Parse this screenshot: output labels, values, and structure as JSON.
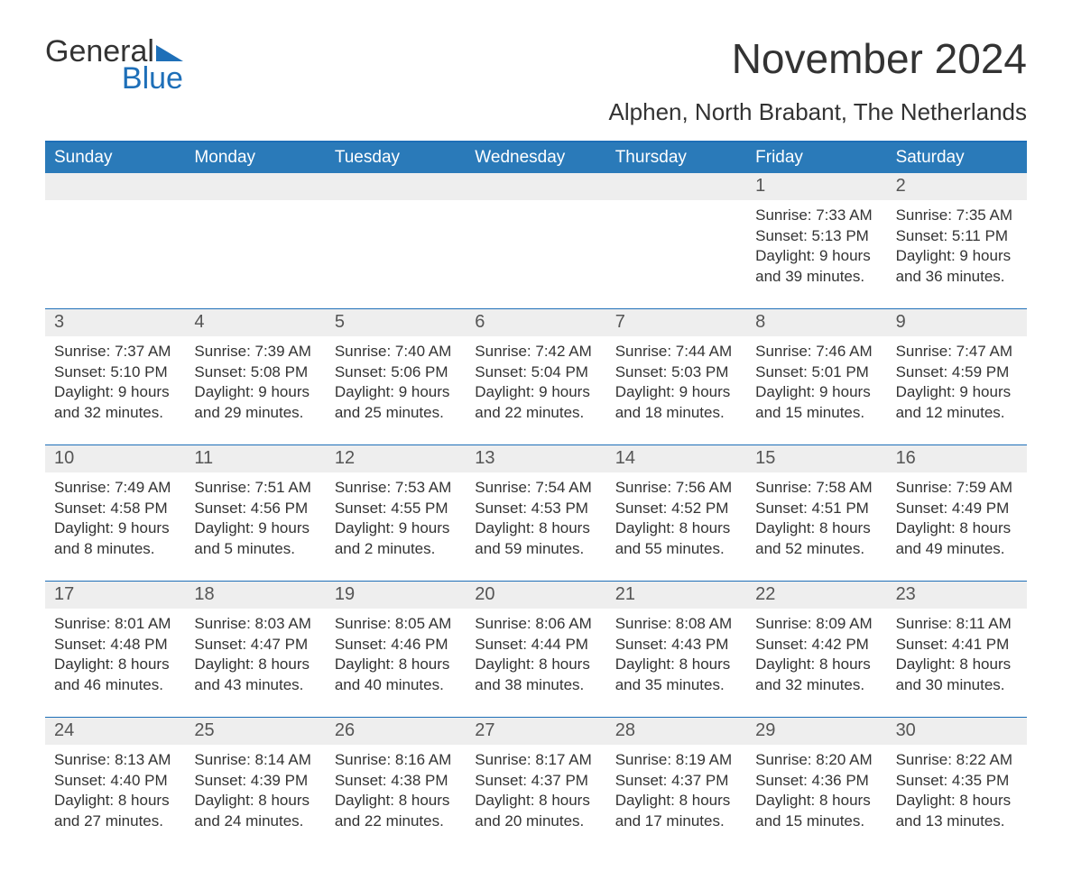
{
  "logo": {
    "text1": "General",
    "text2": "Blue"
  },
  "title": "November 2024",
  "subtitle": "Alphen, North Brabant, The Netherlands",
  "colors": {
    "header_bg": "#2a7ab9",
    "header_text": "#ffffff",
    "accent_border": "#1e6fb8",
    "daynum_bg": "#eeeeee",
    "text": "#333333",
    "blue": "#1e6fb8",
    "background": "#ffffff"
  },
  "typography": {
    "title_fontsize": 46,
    "subtitle_fontsize": 26,
    "weekday_fontsize": 19,
    "daynum_fontsize": 20,
    "body_fontsize": 17
  },
  "weekdays": [
    "Sunday",
    "Monday",
    "Tuesday",
    "Wednesday",
    "Thursday",
    "Friday",
    "Saturday"
  ],
  "weeks": [
    [
      {
        "day": "",
        "sunrise": "",
        "sunset": "",
        "daylight1": "",
        "daylight2": ""
      },
      {
        "day": "",
        "sunrise": "",
        "sunset": "",
        "daylight1": "",
        "daylight2": ""
      },
      {
        "day": "",
        "sunrise": "",
        "sunset": "",
        "daylight1": "",
        "daylight2": ""
      },
      {
        "day": "",
        "sunrise": "",
        "sunset": "",
        "daylight1": "",
        "daylight2": ""
      },
      {
        "day": "",
        "sunrise": "",
        "sunset": "",
        "daylight1": "",
        "daylight2": ""
      },
      {
        "day": "1",
        "sunrise": "Sunrise: 7:33 AM",
        "sunset": "Sunset: 5:13 PM",
        "daylight1": "Daylight: 9 hours",
        "daylight2": "and 39 minutes."
      },
      {
        "day": "2",
        "sunrise": "Sunrise: 7:35 AM",
        "sunset": "Sunset: 5:11 PM",
        "daylight1": "Daylight: 9 hours",
        "daylight2": "and 36 minutes."
      }
    ],
    [
      {
        "day": "3",
        "sunrise": "Sunrise: 7:37 AM",
        "sunset": "Sunset: 5:10 PM",
        "daylight1": "Daylight: 9 hours",
        "daylight2": "and 32 minutes."
      },
      {
        "day": "4",
        "sunrise": "Sunrise: 7:39 AM",
        "sunset": "Sunset: 5:08 PM",
        "daylight1": "Daylight: 9 hours",
        "daylight2": "and 29 minutes."
      },
      {
        "day": "5",
        "sunrise": "Sunrise: 7:40 AM",
        "sunset": "Sunset: 5:06 PM",
        "daylight1": "Daylight: 9 hours",
        "daylight2": "and 25 minutes."
      },
      {
        "day": "6",
        "sunrise": "Sunrise: 7:42 AM",
        "sunset": "Sunset: 5:04 PM",
        "daylight1": "Daylight: 9 hours",
        "daylight2": "and 22 minutes."
      },
      {
        "day": "7",
        "sunrise": "Sunrise: 7:44 AM",
        "sunset": "Sunset: 5:03 PM",
        "daylight1": "Daylight: 9 hours",
        "daylight2": "and 18 minutes."
      },
      {
        "day": "8",
        "sunrise": "Sunrise: 7:46 AM",
        "sunset": "Sunset: 5:01 PM",
        "daylight1": "Daylight: 9 hours",
        "daylight2": "and 15 minutes."
      },
      {
        "day": "9",
        "sunrise": "Sunrise: 7:47 AM",
        "sunset": "Sunset: 4:59 PM",
        "daylight1": "Daylight: 9 hours",
        "daylight2": "and 12 minutes."
      }
    ],
    [
      {
        "day": "10",
        "sunrise": "Sunrise: 7:49 AM",
        "sunset": "Sunset: 4:58 PM",
        "daylight1": "Daylight: 9 hours",
        "daylight2": "and 8 minutes."
      },
      {
        "day": "11",
        "sunrise": "Sunrise: 7:51 AM",
        "sunset": "Sunset: 4:56 PM",
        "daylight1": "Daylight: 9 hours",
        "daylight2": "and 5 minutes."
      },
      {
        "day": "12",
        "sunrise": "Sunrise: 7:53 AM",
        "sunset": "Sunset: 4:55 PM",
        "daylight1": "Daylight: 9 hours",
        "daylight2": "and 2 minutes."
      },
      {
        "day": "13",
        "sunrise": "Sunrise: 7:54 AM",
        "sunset": "Sunset: 4:53 PM",
        "daylight1": "Daylight: 8 hours",
        "daylight2": "and 59 minutes."
      },
      {
        "day": "14",
        "sunrise": "Sunrise: 7:56 AM",
        "sunset": "Sunset: 4:52 PM",
        "daylight1": "Daylight: 8 hours",
        "daylight2": "and 55 minutes."
      },
      {
        "day": "15",
        "sunrise": "Sunrise: 7:58 AM",
        "sunset": "Sunset: 4:51 PM",
        "daylight1": "Daylight: 8 hours",
        "daylight2": "and 52 minutes."
      },
      {
        "day": "16",
        "sunrise": "Sunrise: 7:59 AM",
        "sunset": "Sunset: 4:49 PM",
        "daylight1": "Daylight: 8 hours",
        "daylight2": "and 49 minutes."
      }
    ],
    [
      {
        "day": "17",
        "sunrise": "Sunrise: 8:01 AM",
        "sunset": "Sunset: 4:48 PM",
        "daylight1": "Daylight: 8 hours",
        "daylight2": "and 46 minutes."
      },
      {
        "day": "18",
        "sunrise": "Sunrise: 8:03 AM",
        "sunset": "Sunset: 4:47 PM",
        "daylight1": "Daylight: 8 hours",
        "daylight2": "and 43 minutes."
      },
      {
        "day": "19",
        "sunrise": "Sunrise: 8:05 AM",
        "sunset": "Sunset: 4:46 PM",
        "daylight1": "Daylight: 8 hours",
        "daylight2": "and 40 minutes."
      },
      {
        "day": "20",
        "sunrise": "Sunrise: 8:06 AM",
        "sunset": "Sunset: 4:44 PM",
        "daylight1": "Daylight: 8 hours",
        "daylight2": "and 38 minutes."
      },
      {
        "day": "21",
        "sunrise": "Sunrise: 8:08 AM",
        "sunset": "Sunset: 4:43 PM",
        "daylight1": "Daylight: 8 hours",
        "daylight2": "and 35 minutes."
      },
      {
        "day": "22",
        "sunrise": "Sunrise: 8:09 AM",
        "sunset": "Sunset: 4:42 PM",
        "daylight1": "Daylight: 8 hours",
        "daylight2": "and 32 minutes."
      },
      {
        "day": "23",
        "sunrise": "Sunrise: 8:11 AM",
        "sunset": "Sunset: 4:41 PM",
        "daylight1": "Daylight: 8 hours",
        "daylight2": "and 30 minutes."
      }
    ],
    [
      {
        "day": "24",
        "sunrise": "Sunrise: 8:13 AM",
        "sunset": "Sunset: 4:40 PM",
        "daylight1": "Daylight: 8 hours",
        "daylight2": "and 27 minutes."
      },
      {
        "day": "25",
        "sunrise": "Sunrise: 8:14 AM",
        "sunset": "Sunset: 4:39 PM",
        "daylight1": "Daylight: 8 hours",
        "daylight2": "and 24 minutes."
      },
      {
        "day": "26",
        "sunrise": "Sunrise: 8:16 AM",
        "sunset": "Sunset: 4:38 PM",
        "daylight1": "Daylight: 8 hours",
        "daylight2": "and 22 minutes."
      },
      {
        "day": "27",
        "sunrise": "Sunrise: 8:17 AM",
        "sunset": "Sunset: 4:37 PM",
        "daylight1": "Daylight: 8 hours",
        "daylight2": "and 20 minutes."
      },
      {
        "day": "28",
        "sunrise": "Sunrise: 8:19 AM",
        "sunset": "Sunset: 4:37 PM",
        "daylight1": "Daylight: 8 hours",
        "daylight2": "and 17 minutes."
      },
      {
        "day": "29",
        "sunrise": "Sunrise: 8:20 AM",
        "sunset": "Sunset: 4:36 PM",
        "daylight1": "Daylight: 8 hours",
        "daylight2": "and 15 minutes."
      },
      {
        "day": "30",
        "sunrise": "Sunrise: 8:22 AM",
        "sunset": "Sunset: 4:35 PM",
        "daylight1": "Daylight: 8 hours",
        "daylight2": "and 13 minutes."
      }
    ]
  ]
}
